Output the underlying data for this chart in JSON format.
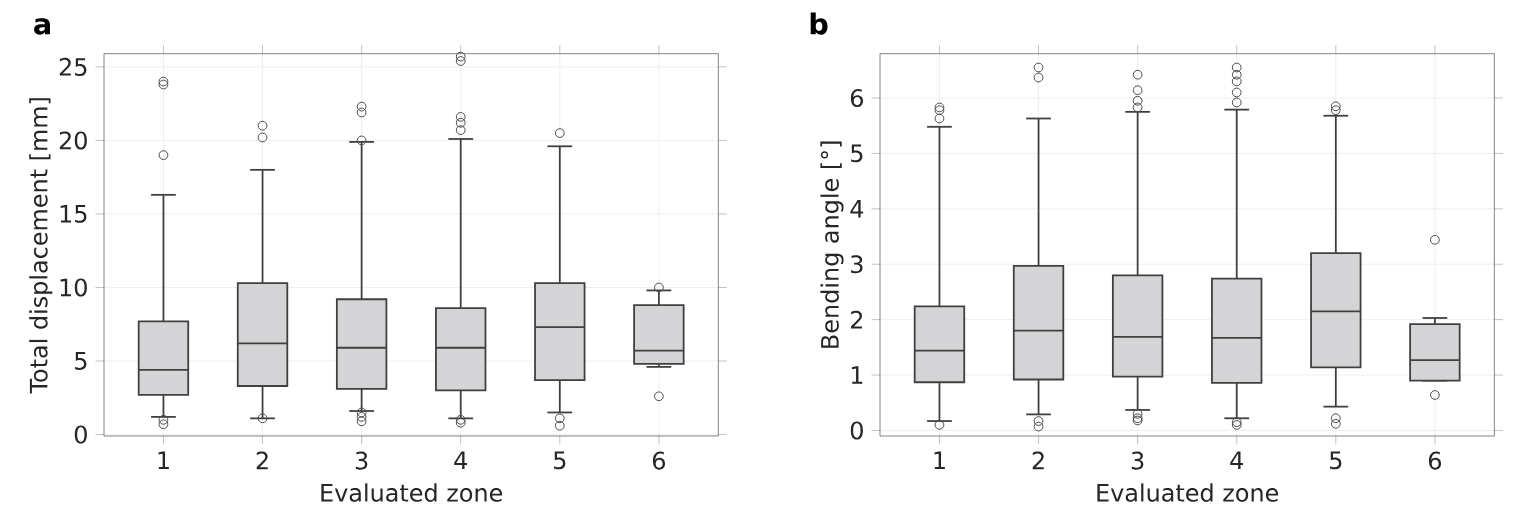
{
  "chart_data": [
    {
      "type": "box",
      "title": "a",
      "xlabel": "Evaluated zone",
      "ylabel": "Total displacement [mm]",
      "categories": [
        "1",
        "2",
        "3",
        "4",
        "5",
        "6"
      ],
      "ylim": [
        -0.1,
        25.9
      ],
      "yticks": [
        0,
        5,
        10,
        15,
        20,
        25
      ],
      "grid": true,
      "color": "#d4d4d6",
      "marker": "circle",
      "boxes": [
        {
          "low": 1.2,
          "q1": 2.7,
          "median": 4.4,
          "q3": 7.7,
          "high": 16.3,
          "outliers": [
            0.7,
            1.0,
            19.0,
            23.8,
            24.0
          ]
        },
        {
          "low": 1.1,
          "q1": 3.3,
          "median": 6.2,
          "q3": 10.3,
          "high": 18.0,
          "outliers": [
            1.1,
            20.2,
            21.0
          ]
        },
        {
          "low": 1.6,
          "q1": 3.1,
          "median": 5.9,
          "q3": 9.2,
          "high": 19.9,
          "outliers": [
            0.9,
            1.2,
            1.5,
            20.0,
            21.9,
            22.3
          ]
        },
        {
          "low": 1.1,
          "q1": 3.0,
          "median": 5.9,
          "q3": 8.6,
          "high": 20.1,
          "outliers": [
            0.8,
            1.0,
            20.7,
            21.2,
            21.6,
            25.4,
            25.7
          ]
        },
        {
          "low": 1.5,
          "q1": 3.7,
          "median": 7.3,
          "q3": 10.3,
          "high": 19.6,
          "outliers": [
            0.6,
            1.1,
            20.5
          ]
        },
        {
          "low": 4.6,
          "q1": 4.8,
          "median": 5.7,
          "q3": 8.8,
          "high": 9.8,
          "outliers": [
            2.6,
            10.0
          ]
        }
      ]
    },
    {
      "type": "box",
      "title": "b",
      "xlabel": "Evaluated zone",
      "ylabel": "Bending angle [°]",
      "categories": [
        "1",
        "2",
        "3",
        "4",
        "5",
        "6"
      ],
      "ylim": [
        -0.1,
        6.8
      ],
      "yticks": [
        0,
        1,
        2,
        3,
        4,
        5,
        6
      ],
      "grid": true,
      "color": "#d4d4d6",
      "marker": "circle",
      "boxes": [
        {
          "low": 0.17,
          "q1": 0.87,
          "median": 1.44,
          "q3": 2.24,
          "high": 5.48,
          "outliers": [
            0.1,
            5.63,
            5.78,
            5.83
          ]
        },
        {
          "low": 0.29,
          "q1": 0.92,
          "median": 1.8,
          "q3": 2.97,
          "high": 5.63,
          "outliers": [
            0.07,
            0.17,
            6.37,
            6.55
          ]
        },
        {
          "low": 0.37,
          "q1": 0.97,
          "median": 1.69,
          "q3": 2.8,
          "high": 5.75,
          "outliers": [
            0.18,
            0.22,
            0.3,
            5.83,
            5.95,
            6.14,
            6.42
          ]
        },
        {
          "low": 0.22,
          "q1": 0.86,
          "median": 1.67,
          "q3": 2.74,
          "high": 5.79,
          "outliers": [
            0.1,
            0.15,
            5.92,
            6.1,
            6.3,
            6.42,
            6.55
          ]
        },
        {
          "low": 0.43,
          "q1": 1.14,
          "median": 2.15,
          "q3": 3.2,
          "high": 5.68,
          "outliers": [
            0.12,
            0.22,
            5.78,
            5.85
          ]
        },
        {
          "low": 0.9,
          "q1": 0.9,
          "median": 1.27,
          "q3": 1.92,
          "high": 2.03,
          "outliers": [
            0.64,
            3.44
          ]
        }
      ]
    }
  ]
}
